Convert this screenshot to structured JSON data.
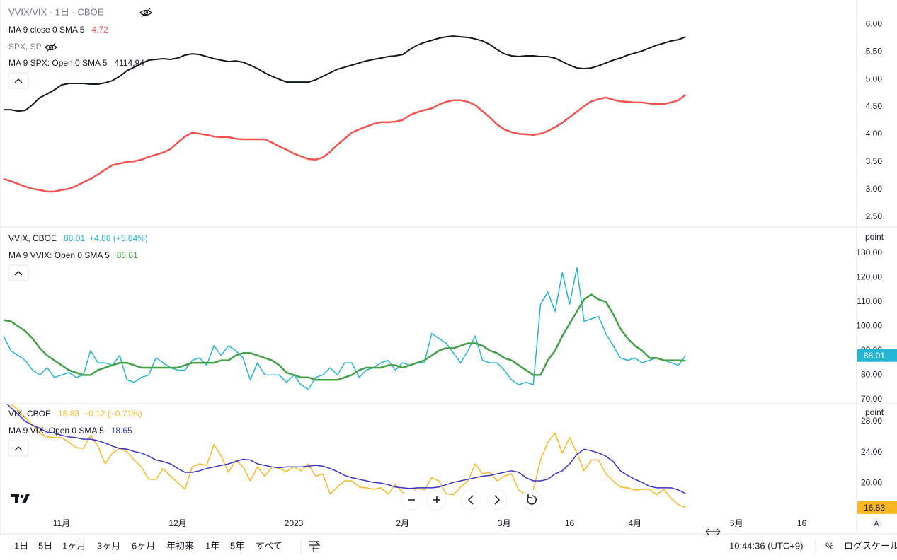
{
  "chart_data": [
    {
      "type": "line",
      "title": "VVIX/VIX · 1日 · CBOE",
      "ylim": [
        2.33,
        6.44
      ],
      "yticks": [
        {
          "value": 2.5,
          "label": "2.50"
        },
        {
          "value": 3,
          "label": "3.00"
        },
        {
          "value": 3.5,
          "label": "3.50"
        },
        {
          "value": 4,
          "label": "4.00"
        },
        {
          "value": 4.5,
          "label": "4.50"
        },
        {
          "value": 5,
          "label": "5.00"
        },
        {
          "value": 5.5,
          "label": "5.50"
        },
        {
          "value": 6,
          "label": "6.00"
        }
      ],
      "y2lim": [
        2830,
        4365
      ],
      "series": [
        {
          "name": "MA 9 close 0 SMA 5",
          "color": "#f05350",
          "width": 2.5,
          "values": [
            3.19,
            3.15,
            3.1,
            3.05,
            3.01,
            2.99,
            2.96,
            2.96,
            2.99,
            3.01,
            3.06,
            3.13,
            3.19,
            3.27,
            3.36,
            3.44,
            3.47,
            3.5,
            3.51,
            3.54,
            3.59,
            3.63,
            3.67,
            3.73,
            3.85,
            3.96,
            4.03,
            4.01,
            3.99,
            3.96,
            3.95,
            3.95,
            3.92,
            3.91,
            3.91,
            3.91,
            3.91,
            3.85,
            3.78,
            3.72,
            3.65,
            3.6,
            3.55,
            3.54,
            3.58,
            3.68,
            3.81,
            3.92,
            4.03,
            4.09,
            4.14,
            4.19,
            4.22,
            4.22,
            4.23,
            4.26,
            4.35,
            4.4,
            4.44,
            4.47,
            4.54,
            4.59,
            4.62,
            4.62,
            4.59,
            4.53,
            4.42,
            4.31,
            4.18,
            4.09,
            4.04,
            4.01,
            4.0,
            3.99,
            4.01,
            4.06,
            4.13,
            4.21,
            4.31,
            4.41,
            4.51,
            4.6,
            4.64,
            4.67,
            4.63,
            4.6,
            4.59,
            4.58,
            4.58,
            4.56,
            4.55,
            4.55,
            4.58,
            4.62,
            4.72,
            null,
            null,
            null,
            null,
            null,
            null,
            null,
            null,
            null,
            null,
            null,
            null,
            null,
            null,
            null,
            null
          ]
        },
        {
          "source": "SPX, SP",
          "name": "MA 9 SPX: Open 0 SMA 5",
          "color": "#131722",
          "width": 2,
          "axis": "y2",
          "values": [
            3621,
            3621,
            3611,
            3616,
            3655,
            3703,
            3727,
            3755,
            3789,
            3799,
            3799,
            3799,
            3794,
            3794,
            3803,
            3818,
            3847,
            3885,
            3909,
            3933,
            3957,
            3962,
            3967,
            3962,
            3971,
            3991,
            4000,
            3995,
            3981,
            3967,
            3957,
            3947,
            3952,
            3943,
            3923,
            3899,
            3871,
            3847,
            3827,
            3808,
            3808,
            3808,
            3808,
            3823,
            3847,
            3871,
            3895,
            3909,
            3923,
            3938,
            3952,
            3962,
            3971,
            3981,
            3986,
            3995,
            4029,
            4058,
            4077,
            4091,
            4106,
            4115,
            4120,
            4115,
            4111,
            4101,
            4087,
            4063,
            4029,
            4000,
            3986,
            3981,
            3986,
            3986,
            3981,
            3981,
            3971,
            3947,
            3923,
            3904,
            3899,
            3904,
            3919,
            3938,
            3957,
            3971,
            3991,
            4005,
            4019,
            4039,
            4058,
            4072,
            4087,
            4096,
            4114.94,
            null,
            null,
            null,
            null,
            null,
            null,
            null,
            null,
            null,
            null,
            null,
            null,
            null,
            null,
            null,
            null
          ]
        }
      ]
    },
    {
      "type": "line",
      "y_unit": "point",
      "ylim": [
        68.5,
        140.4
      ],
      "yticks": [
        {
          "value": 70,
          "label": "70.00"
        },
        {
          "value": 80,
          "label": "80.00"
        },
        {
          "value": 90,
          "label": "90.00"
        },
        {
          "value": 100,
          "label": "100.00"
        },
        {
          "value": 110,
          "label": "110.00"
        },
        {
          "value": 120,
          "label": "120.00"
        },
        {
          "value": 130,
          "label": "130.00"
        }
      ],
      "series": [
        {
          "name": "VVIX, CBOE",
          "color": "#23b5d3",
          "width": 1.5,
          "change": "+4.86 (+5.84%)",
          "values": [
            96,
            90,
            88,
            86,
            82,
            80,
            83,
            79,
            80,
            81,
            79,
            80,
            90,
            85,
            85,
            84,
            88,
            78,
            77,
            79,
            80,
            87,
            85,
            83,
            82,
            82,
            86,
            87,
            84,
            92,
            88,
            92,
            90,
            87,
            78,
            85,
            80,
            80,
            80,
            77,
            80,
            76,
            74,
            79,
            80,
            83,
            80,
            85,
            85,
            79,
            82,
            83,
            85,
            86,
            82,
            85,
            84,
            85,
            85,
            97,
            95,
            93,
            89,
            85,
            90,
            96,
            86,
            85,
            85,
            82,
            78,
            76,
            77,
            76,
            109,
            114,
            106,
            122,
            109,
            124,
            102,
            103,
            104,
            97,
            92,
            87,
            86,
            87,
            85,
            86,
            87,
            86,
            85,
            84,
            88.01,
            null,
            null,
            null,
            null,
            null,
            null,
            null,
            null,
            null,
            null,
            null,
            null,
            null,
            null,
            null,
            null
          ]
        },
        {
          "name": "MA 9 VVIX: Open 0 SMA 5",
          "color": "#43a047",
          "width": 2.5,
          "values": [
            102.5,
            102,
            100,
            98,
            95,
            91,
            88,
            86,
            84,
            82,
            81,
            80,
            80,
            82,
            83,
            84,
            85,
            85,
            84,
            83,
            83,
            83,
            83,
            83,
            83,
            84,
            85,
            85,
            85,
            85,
            86,
            86,
            88,
            89,
            89,
            88,
            87,
            86,
            84,
            81,
            80,
            79,
            79,
            78,
            78,
            78,
            78,
            79,
            80,
            82,
            83,
            83,
            83,
            84,
            84,
            83,
            84,
            85,
            86,
            88,
            90,
            91,
            91,
            92,
            93,
            93,
            92,
            90,
            89,
            87,
            86,
            84,
            82,
            80,
            80,
            86,
            90,
            96,
            101,
            106,
            111,
            113,
            111,
            110,
            105,
            99,
            95,
            92,
            90,
            87,
            87,
            86,
            86,
            86,
            85.81,
            null,
            null,
            null,
            null,
            null,
            null,
            null,
            null,
            null,
            null,
            null,
            null,
            null,
            null,
            null,
            null
          ]
        }
      ]
    },
    {
      "type": "line",
      "y_unit": "point",
      "categories": [
        null,
        null,
        null,
        null,
        null,
        null,
        null,
        null,
        "11月",
        null,
        null,
        null,
        null,
        null,
        null,
        null,
        null,
        null,
        null,
        null,
        null,
        null,
        null,
        null,
        "12月",
        null,
        null,
        null,
        null,
        null,
        null,
        null,
        null,
        null,
        null,
        null,
        null,
        null,
        null,
        null,
        "2023",
        null,
        null,
        null,
        null,
        null,
        null,
        null,
        null,
        null,
        null,
        null,
        null,
        null,
        null,
        "2月",
        null,
        null,
        null,
        null,
        null,
        null,
        null,
        null,
        null,
        null,
        null,
        null,
        null,
        "3月",
        null,
        null,
        null,
        null,
        null,
        null,
        null,
        null,
        "16",
        null,
        null,
        null,
        null,
        null,
        null,
        null,
        null,
        "4月",
        null,
        null,
        null,
        null,
        null,
        null,
        null,
        null,
        null,
        null,
        null,
        null,
        null,
        "5月",
        null,
        null,
        null,
        null,
        null,
        null,
        null,
        null,
        "16"
      ],
      "ylim": [
        15.9,
        30.2
      ],
      "yticks": [
        {
          "value": 20,
          "label": "20.00"
        },
        {
          "value": 24,
          "label": "24.00"
        },
        {
          "value": 28,
          "label": "28.00"
        }
      ],
      "series": [
        {
          "name": "VIX, CBOE",
          "color": "#f9b823",
          "width": 1.5,
          "change": "−0.12 (−0.71%)",
          "values": [
            30.7,
            30.3,
            29.5,
            28.5,
            27.5,
            26.5,
            26.0,
            25.9,
            25.9,
            25.3,
            24.6,
            24.5,
            26.2,
            24.8,
            22.5,
            23.9,
            24.5,
            24.1,
            23.0,
            22.1,
            20.5,
            20.5,
            21.9,
            20.9,
            20.1,
            19.2,
            22.1,
            22.5,
            22.3,
            25.0,
            23.5,
            21.4,
            23.0,
            22.1,
            20.3,
            22.1,
            20.9,
            22.1,
            21.9,
            21.5,
            22.1,
            21.6,
            22.5,
            20.9,
            21.2,
            18.6,
            19.5,
            20.3,
            20.3,
            19.5,
            19.4,
            19.2,
            19.4,
            18.6,
            19.8,
            18.8,
            18.5,
            19.4,
            19.1,
            20.7,
            20.3,
            18.6,
            18.5,
            19.5,
            20.3,
            22.5,
            21.2,
            21.4,
            20.3,
            20.9,
            21.2,
            19.1,
            18.5,
            19.1,
            23.0,
            25.3,
            26.5,
            23.9,
            25.9,
            23.9,
            21.6,
            23.0,
            23.0,
            21.2,
            20.3,
            19.5,
            19.4,
            19.1,
            19.2,
            19.2,
            18.5,
            19.2,
            18.0,
            17.2,
            16.83,
            null,
            null,
            null,
            null,
            null,
            null,
            null,
            null,
            null,
            null,
            null,
            null,
            null,
            null,
            null,
            null
          ]
        },
        {
          "name": "MA 9 VIX: Open 0 SMA 5",
          "color": "#3935c4",
          "width": 1.5,
          "values": [
            30.7,
            29.8,
            28.9,
            28.0,
            27.5,
            27.1,
            26.6,
            26.5,
            26.2,
            26.0,
            25.9,
            25.7,
            25.7,
            25.5,
            25.2,
            24.8,
            24.5,
            24.4,
            24.1,
            23.9,
            23.5,
            23.0,
            22.8,
            22.5,
            21.9,
            21.4,
            21.4,
            21.6,
            21.9,
            22.1,
            22.3,
            22.5,
            22.8,
            23.1,
            23.0,
            22.5,
            22.3,
            22.1,
            22.0,
            22.1,
            22.1,
            22.1,
            22.2,
            22.3,
            22.2,
            21.9,
            21.5,
            21.0,
            20.7,
            20.5,
            20.3,
            20.1,
            20.0,
            19.8,
            19.5,
            19.4,
            19.3,
            19.4,
            19.4,
            19.4,
            19.5,
            19.8,
            20.1,
            20.3,
            20.5,
            20.7,
            20.9,
            21.0,
            21.2,
            21.4,
            21.6,
            21.4,
            20.7,
            20.3,
            20.3,
            20.5,
            21.2,
            21.6,
            22.5,
            23.7,
            24.4,
            24.2,
            23.9,
            23.5,
            22.8,
            21.6,
            21.0,
            20.5,
            20.1,
            19.6,
            19.4,
            19.4,
            19.4,
            19.1,
            18.65,
            null,
            null,
            null,
            null,
            null,
            null,
            null,
            null,
            null,
            null,
            null,
            null,
            null,
            null,
            null,
            null
          ]
        }
      ]
    }
  ],
  "toolbar": {
    "ranges": [
      "1日",
      "5日",
      "1ヶ月",
      "3ヶ月",
      "6ヶ月",
      "年初来",
      "1年",
      "5年",
      "すべて"
    ],
    "time": "10:44:36 (UTC+9)",
    "percent": "%",
    "log": "ログスケール",
    "auto": "A"
  }
}
